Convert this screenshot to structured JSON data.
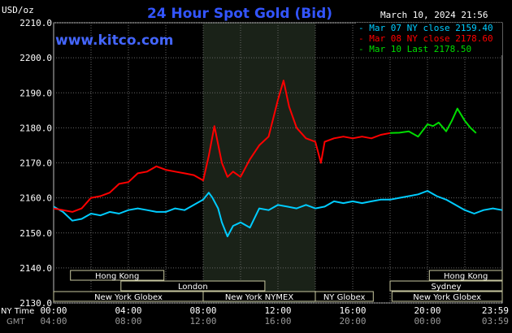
{
  "chart_data": {
    "type": "line",
    "title": "24 Hour Spot Gold (Bid)",
    "watermark": "www.kitco.com",
    "timestamp": "March 10, 2024 21:56",
    "y_unit": "USD/oz",
    "ylim": [
      2130,
      2210
    ],
    "y_ticks": [
      "2210.0",
      "2200.0",
      "2190.0",
      "2180.0",
      "2170.0",
      "2160.0",
      "2150.0",
      "2140.0",
      "2130.0"
    ],
    "xlim": [
      0,
      24
    ],
    "x_ticks_ny": [
      "00:00",
      "04:00",
      "08:00",
      "12:00",
      "16:00",
      "20:00",
      "23:59"
    ],
    "x_ticks_gmt": [
      "04:00",
      "08:00",
      "12:00",
      "16:00",
      "20:00",
      "00:00",
      "03:59"
    ],
    "x_row_labels": [
      "NY Time",
      "GMT"
    ],
    "grid": true,
    "shaded_region": [
      8.0,
      14.0
    ],
    "legend_position": "top-right",
    "legend": [
      {
        "label": "Mar 07 NY close 2159.40",
        "color": "#00ccff"
      },
      {
        "label": "Mar 08 NY close 2178.60",
        "color": "#ff0000"
      },
      {
        "label": "Mar 10 Last 2178.50",
        "color": "#00dd00"
      }
    ],
    "sessions": [
      {
        "label": "Hong Kong",
        "start": 0.9,
        "end": 5.9,
        "row": 0
      },
      {
        "label": "Hong Kong",
        "start": 20.1,
        "end": 24.0,
        "row": 0
      },
      {
        "label": "London",
        "start": 3.6,
        "end": 11.3,
        "row": 1
      },
      {
        "label": "Sydney",
        "start": 18.0,
        "end": 24.0,
        "row": 1
      },
      {
        "label": "New York Globex",
        "start": 0.0,
        "end": 8.0,
        "row": 2
      },
      {
        "label": "New York NYMEX",
        "start": 8.0,
        "end": 14.0,
        "row": 2
      },
      {
        "label": "NY Globex",
        "start": 14.0,
        "end": 17.1,
        "row": 2
      },
      {
        "label": "New York Globex",
        "start": 18.1,
        "end": 24.0,
        "row": 2
      }
    ],
    "series": [
      {
        "name": "Mar 07 NY close 2159.40",
        "color": "#00ccff",
        "x": [
          0,
          0.5,
          1,
          1.5,
          2,
          2.5,
          3,
          3.5,
          4,
          4.5,
          5,
          5.5,
          6,
          6.5,
          7,
          7.5,
          8,
          8.3,
          8.5,
          8.8,
          9,
          9.3,
          9.6,
          10,
          10.5,
          11,
          11.5,
          12,
          12.5,
          13,
          13.5,
          14,
          14.5,
          15,
          15.5,
          16,
          16.5,
          17,
          17.5,
          18,
          18.5,
          19,
          19.5,
          20,
          20.5,
          21,
          21.5,
          22,
          22.5,
          23,
          23.5,
          24
        ],
        "y": [
          2157.5,
          2156.0,
          2153.5,
          2154.0,
          2155.5,
          2155.0,
          2156.0,
          2155.5,
          2156.5,
          2157.0,
          2156.5,
          2156.0,
          2156.0,
          2157.0,
          2156.5,
          2158.0,
          2159.5,
          2161.5,
          2160.0,
          2157.0,
          2153.0,
          2149.0,
          2152.0,
          2153.0,
          2151.5,
          2157.0,
          2156.5,
          2158.0,
          2157.5,
          2157.0,
          2158.0,
          2157.0,
          2157.5,
          2159.0,
          2158.5,
          2159.0,
          2158.5,
          2159.0,
          2159.5,
          2159.5,
          2160.0,
          2160.5,
          2161.0,
          2162.0,
          2160.5,
          2159.5,
          2158.0,
          2156.5,
          2155.5,
          2156.5,
          2157.0,
          2156.5
        ]
      },
      {
        "name": "Mar 08 NY close 2178.60",
        "color": "#ff0000",
        "x": [
          0,
          0.5,
          1,
          1.5,
          2,
          2.5,
          3,
          3.5,
          4,
          4.5,
          5,
          5.5,
          6,
          6.5,
          7,
          7.5,
          8,
          8.3,
          8.6,
          9,
          9.3,
          9.6,
          10,
          10.5,
          11,
          11.5,
          12,
          12.3,
          12.6,
          13,
          13.5,
          14,
          14.3,
          14.5,
          15,
          15.5,
          16,
          16.5,
          17,
          17.5,
          18
        ],
        "y": [
          2157.0,
          2156.5,
          2156.0,
          2157.0,
          2160.0,
          2160.5,
          2161.5,
          2164.0,
          2164.5,
          2167.0,
          2167.5,
          2169.0,
          2168.0,
          2167.5,
          2167.0,
          2166.5,
          2165.0,
          2172.0,
          2180.5,
          2170.0,
          2166.0,
          2167.5,
          2166.0,
          2171.0,
          2175.0,
          2177.5,
          2188.0,
          2193.5,
          2186.0,
          2180.0,
          2177.0,
          2176.0,
          2170.0,
          2176.0,
          2177.0,
          2177.5,
          2177.0,
          2177.5,
          2177.0,
          2178.0,
          2178.5
        ]
      },
      {
        "name": "Mar 10 Last 2178.50",
        "color": "#00dd00",
        "x": [
          18,
          18.5,
          19,
          19.5,
          20,
          20.3,
          20.6,
          21,
          21.3,
          21.6,
          22,
          22.3,
          22.6
        ],
        "y": [
          2178.5,
          2178.6,
          2179.0,
          2177.5,
          2181.0,
          2180.5,
          2181.5,
          2179.0,
          2182.0,
          2185.5,
          2182.0,
          2180.0,
          2178.5
        ]
      }
    ]
  }
}
